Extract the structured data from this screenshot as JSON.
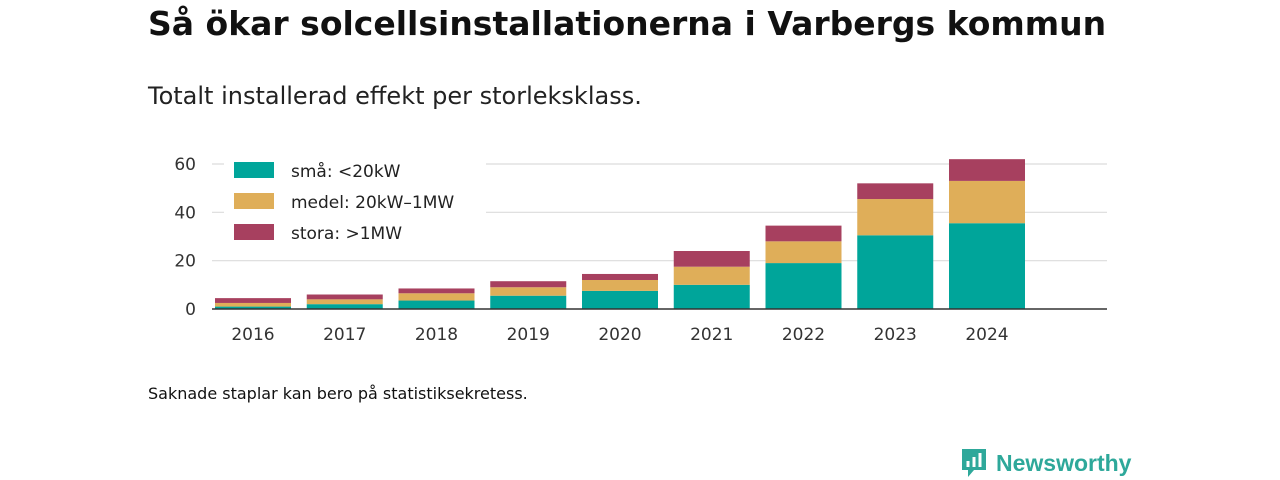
{
  "header": {
    "title": "Så ökar solcellsinstallationerna i Varbergs kommun",
    "subtitle": "Totalt installerad effekt per storleksklass."
  },
  "footnote": "Saknade staplar kan bero på statistiksekretess.",
  "brand": {
    "name": "Newsworthy",
    "color": "#2ea89a",
    "icon": "newsworthy-logo-icon"
  },
  "chart_data": {
    "type": "bar",
    "stacked": true,
    "categories": [
      "2016",
      "2017",
      "2018",
      "2019",
      "2020",
      "2021",
      "2022",
      "2023",
      "2024"
    ],
    "series": [
      {
        "name": "små: <20kW",
        "color": "#00a59a",
        "values": [
          1,
          2,
          3.5,
          5.5,
          7.5,
          10,
          19,
          30.5,
          35.5
        ]
      },
      {
        "name": "medel: 20kW–1MW",
        "color": "#dfae59",
        "values": [
          1.5,
          2,
          3,
          3.5,
          4.5,
          7.5,
          9,
          15,
          17.5
        ]
      },
      {
        "name": "stora: >1MW",
        "color": "#a7405f",
        "values": [
          2,
          2,
          2,
          2.5,
          2.5,
          6.5,
          6.5,
          6.5,
          9
        ]
      }
    ],
    "yticks": [
      "0",
      "20",
      "40",
      "60"
    ],
    "ylim": [
      0,
      65
    ],
    "grid": true,
    "legend_position": "top-left"
  }
}
